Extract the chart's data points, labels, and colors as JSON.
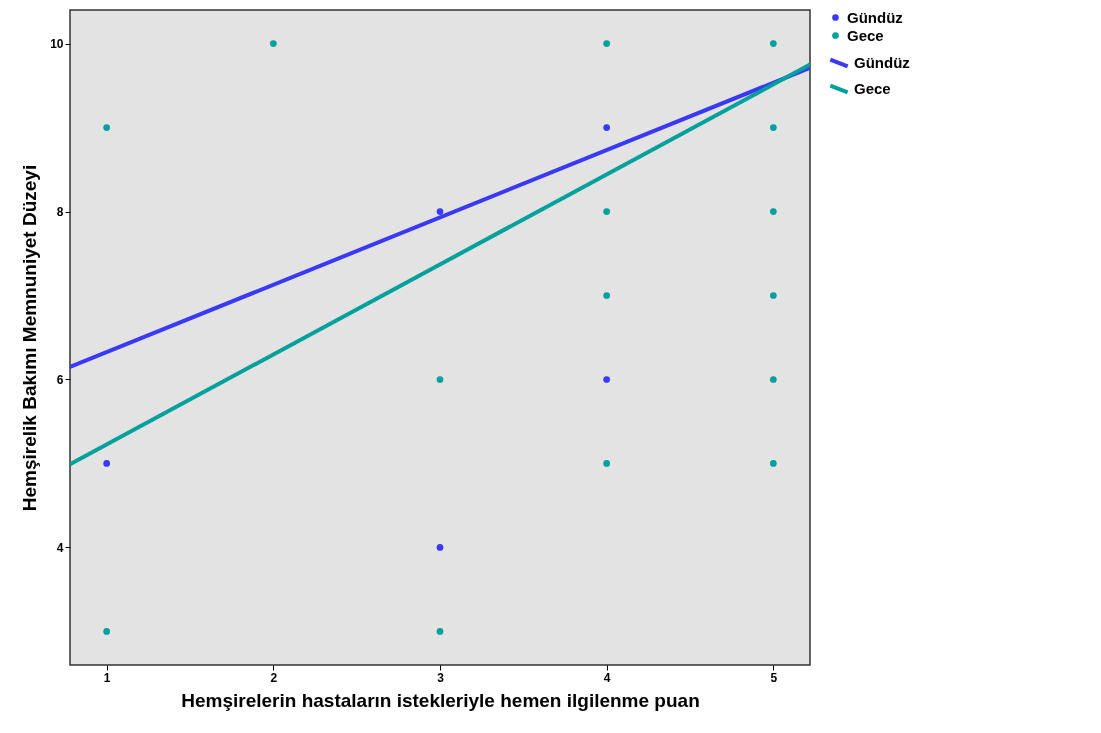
{
  "chart_data": {
    "type": "scatter",
    "xlabel": "Hemşirelerin hastaların istekleriyle hemen ilgilenme puan",
    "ylabel": "Hemşirelik Bakımı Memnuniyet Düzeyi",
    "xlim": [
      0.78,
      5.22
    ],
    "xticks": [
      1,
      2,
      3,
      4,
      5
    ],
    "ylim": [
      2.6,
      10.4
    ],
    "yticks": [
      4,
      6,
      8,
      10
    ],
    "grid": false,
    "legend": "top right",
    "series": [
      {
        "name": "Gündüz",
        "marker": "circle",
        "color": "#3a3af5",
        "x": [
          1,
          3,
          3,
          4,
          4
        ],
        "values": [
          5,
          8,
          4,
          9,
          6
        ]
      },
      {
        "name": "Gece",
        "marker": "circle",
        "color": "#00a09c",
        "x": [
          1,
          1,
          2,
          3,
          3,
          4,
          4,
          4,
          4,
          5,
          5,
          5,
          5,
          5,
          5
        ],
        "values": [
          9,
          3,
          10,
          6,
          3,
          10,
          8,
          7,
          5,
          10,
          9,
          8,
          7,
          6,
          5
        ]
      },
      {
        "name": "Gündüz",
        "type": "line",
        "marker": "none",
        "color": "#3a3af5",
        "x": [
          0.78,
          5.22
        ],
        "values": [
          6.15,
          9.71
        ]
      },
      {
        "name": "Gece",
        "type": "line",
        "marker": "none",
        "color": "#00a09c",
        "x": [
          0.78,
          5.22
        ],
        "values": [
          4.99,
          9.75
        ]
      }
    ]
  }
}
